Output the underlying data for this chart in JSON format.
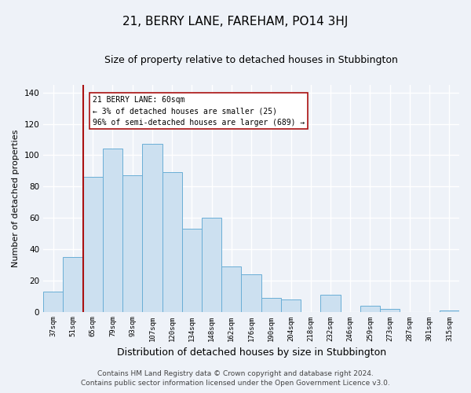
{
  "title": "21, BERRY LANE, FAREHAM, PO14 3HJ",
  "subtitle": "Size of property relative to detached houses in Stubbington",
  "xlabel": "Distribution of detached houses by size in Stubbington",
  "ylabel": "Number of detached properties",
  "bar_labels": [
    "37sqm",
    "51sqm",
    "65sqm",
    "79sqm",
    "93sqm",
    "107sqm",
    "120sqm",
    "134sqm",
    "148sqm",
    "162sqm",
    "176sqm",
    "190sqm",
    "204sqm",
    "218sqm",
    "232sqm",
    "246sqm",
    "259sqm",
    "273sqm",
    "287sqm",
    "301sqm",
    "315sqm"
  ],
  "bar_values": [
    13,
    35,
    86,
    104,
    87,
    107,
    89,
    53,
    60,
    29,
    24,
    9,
    8,
    0,
    11,
    0,
    4,
    2,
    0,
    0,
    1
  ],
  "bar_color": "#cce0f0",
  "bar_edge_color": "#6aaed6",
  "ylim": [
    0,
    145
  ],
  "yticks": [
    0,
    20,
    40,
    60,
    80,
    100,
    120,
    140
  ],
  "vline_color": "#aa1111",
  "annotation_title": "21 BERRY LANE: 60sqm",
  "annotation_line1": "← 3% of detached houses are smaller (25)",
  "annotation_line2": "96% of semi-detached houses are larger (689) →",
  "annotation_box_color": "#ffffff",
  "annotation_box_edge": "#aa1111",
  "footer_line1": "Contains HM Land Registry data © Crown copyright and database right 2024.",
  "footer_line2": "Contains public sector information licensed under the Open Government Licence v3.0.",
  "background_color": "#eef2f8",
  "plot_bg_color": "#eef2f8",
  "grid_color": "#ffffff",
  "title_fontsize": 11,
  "subtitle_fontsize": 9,
  "xlabel_fontsize": 9,
  "ylabel_fontsize": 8,
  "footer_fontsize": 6.5
}
